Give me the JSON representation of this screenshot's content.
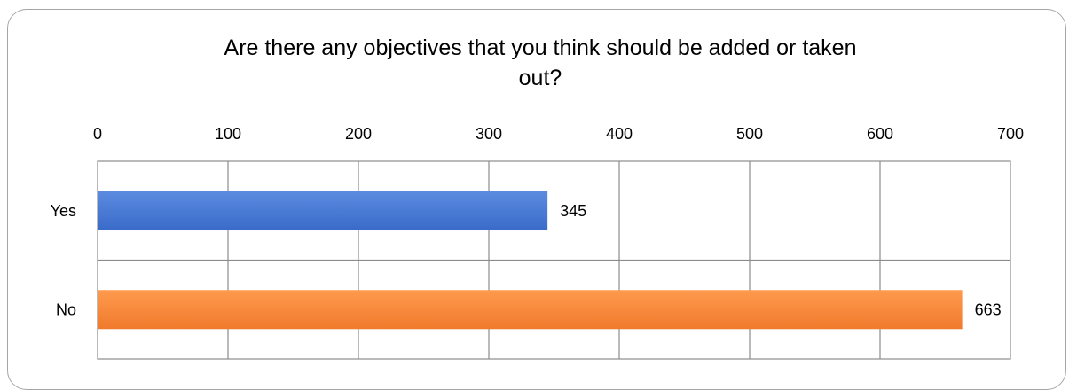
{
  "chart_data": {
    "type": "bar",
    "orientation": "horizontal",
    "title": "Are there any objectives that you think should be added or taken out?",
    "title_lines": [
      "Are there any objectives that you think should be added or taken",
      "out?"
    ],
    "categories": [
      "Yes",
      "No"
    ],
    "values": [
      345,
      663
    ],
    "data_labels": [
      "345",
      "663"
    ],
    "xlim": [
      0,
      700
    ],
    "x_ticks": [
      0,
      100,
      200,
      300,
      400,
      500,
      600,
      700
    ],
    "x_tick_labels": [
      "0",
      "100",
      "200",
      "300",
      "400",
      "500",
      "600",
      "700"
    ],
    "x_axis_position": "top",
    "grid": true,
    "legend": "none",
    "colors": [
      "#4472c4",
      "#ed7d31"
    ]
  }
}
